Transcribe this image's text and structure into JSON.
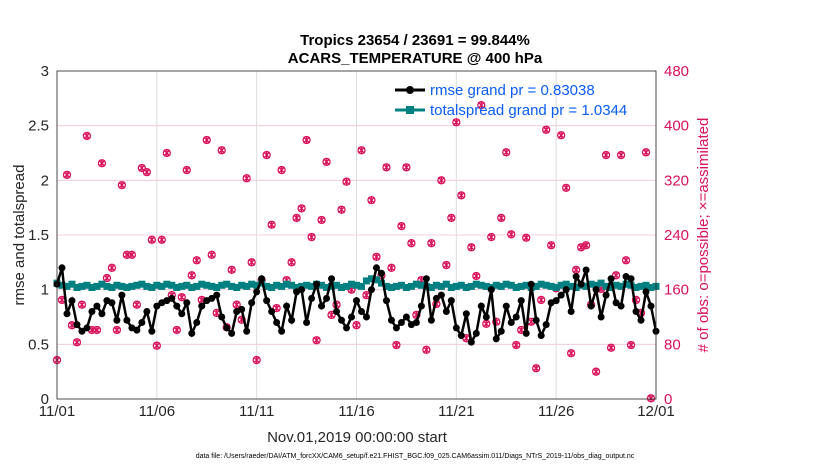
{
  "chart_data": {
    "type": "line",
    "title": [
      "Tropics 23654 / 23691 = 99.844%",
      "ACARS_TEMPERATURE @ 400 hPa"
    ],
    "xlabel": "Nov.01,2019 00:00:00 start",
    "ylabel": "rmse and totalspread",
    "ylabel_right": "# of obs: o=possible; ×=assimilated",
    "xlim_days": [
      0,
      30
    ],
    "x_ticks": [
      "11/01",
      "11/06",
      "11/11",
      "11/16",
      "11/21",
      "11/26",
      "12/01"
    ],
    "ylim": [
      0,
      3
    ],
    "y_ticks": [
      "0",
      "0.5",
      "1",
      "1.5",
      "2",
      "2.5",
      "3"
    ],
    "ylim_right": [
      0,
      480
    ],
    "y_ticks_right": [
      "0",
      "80",
      "160",
      "240",
      "320",
      "400",
      "480"
    ],
    "grid": true,
    "legend_placement": "top-right",
    "x_step_days": 0.25,
    "series": [
      {
        "name": "rmse grand pr = 0.83038",
        "color": "#000000",
        "axis": "left",
        "values": [
          1.05,
          1.2,
          0.78,
          0.9,
          0.68,
          0.62,
          0.65,
          0.8,
          0.85,
          0.78,
          0.9,
          0.88,
          0.72,
          0.95,
          0.72,
          0.65,
          0.63,
          0.7,
          0.8,
          0.62,
          0.85,
          0.88,
          0.9,
          0.92,
          0.85,
          0.78,
          0.88,
          0.6,
          0.7,
          0.85,
          0.9,
          0.92,
          0.95,
          0.75,
          0.65,
          0.6,
          0.8,
          0.82,
          0.62,
          0.88,
          0.98,
          1.1,
          0.9,
          0.8,
          0.7,
          0.62,
          0.85,
          0.72,
          0.98,
          1.0,
          0.7,
          0.92,
          1.05,
          0.85,
          0.92,
          1.1,
          0.8,
          0.72,
          0.65,
          0.75,
          0.9,
          0.8,
          0.75,
          1.0,
          1.2,
          1.15,
          0.9,
          0.72,
          0.65,
          0.7,
          0.75,
          0.68,
          0.7,
          0.85,
          1.1,
          0.72,
          0.92,
          0.95,
          0.8,
          0.9,
          0.65,
          0.58,
          0.78,
          0.52,
          0.6,
          0.85,
          0.75,
          1.0,
          0.55,
          0.62,
          0.85,
          0.7,
          0.75,
          0.9,
          0.6,
          1.05,
          0.72,
          0.58,
          0.68,
          0.88,
          0.9,
          0.95,
          1.0,
          0.8,
          1.12,
          1.05,
          1.18,
          0.85,
          1.0,
          0.75,
          0.95,
          1.1,
          0.88,
          0.85,
          1.12,
          1.1,
          0.8,
          0.72,
          0.98,
          0.85,
          0.62
        ]
      },
      {
        "name": "totalspread grand pr = 1.0344",
        "color": "#008080",
        "axis": "left",
        "values": [
          1.06,
          1.04,
          1.03,
          1.05,
          1.02,
          1.03,
          1.04,
          1.02,
          1.03,
          1.05,
          1.03,
          1.02,
          1.04,
          1.03,
          1.02,
          1.03,
          1.04,
          1.05,
          1.03,
          1.02,
          1.04,
          1.03,
          1.05,
          1.04,
          1.02,
          1.03,
          1.04,
          1.02,
          1.03,
          1.05,
          1.04,
          1.03,
          1.02,
          1.04,
          1.05,
          1.03,
          1.02,
          1.04,
          1.03,
          1.05,
          1.04,
          1.06,
          1.03,
          1.02,
          1.04,
          1.03,
          1.05,
          1.04,
          1.02,
          1.03,
          1.04,
          1.03,
          1.05,
          1.04,
          1.02,
          1.03,
          1.04,
          1.02,
          1.03,
          1.05,
          1.04,
          1.03,
          1.08,
          1.1,
          1.09,
          1.06,
          1.03,
          1.02,
          1.03,
          1.04,
          1.02,
          1.03,
          1.05,
          1.04,
          1.03,
          1.02,
          1.04,
          1.03,
          1.05,
          1.02,
          1.03,
          1.04,
          1.02,
          1.03,
          1.05,
          1.04,
          1.03,
          1.02,
          1.04,
          1.03,
          1.05,
          1.04,
          1.02,
          1.03,
          1.04,
          1.02,
          1.03,
          1.05,
          1.04,
          1.03,
          1.02,
          1.04,
          1.05,
          1.03,
          1.02,
          1.04,
          1.03,
          1.05,
          1.04,
          1.06,
          1.03,
          1.02,
          1.04,
          1.03,
          1.05,
          1.04,
          1.02,
          1.03,
          1.04,
          1.02,
          1.03
        ]
      },
      {
        "name": "# of obs",
        "color": "#d8125b",
        "axis": "right",
        "marker": "o and ×",
        "values": [
          57,
          145,
          328,
          108,
          83,
          138,
          385,
          101,
          101,
          345,
          177,
          192,
          101,
          313,
          211,
          211,
          138,
          338,
          332,
          233,
          78,
          233,
          360,
          152,
          101,
          149,
          335,
          181,
          203,
          145,
          379,
          211,
          126,
          364,
          105,
          189,
          138,
          116,
          323,
          200,
          57,
          174,
          357,
          255,
          133,
          335,
          174,
          200,
          265,
          279,
          379,
          237,
          86,
          262,
          347,
          123,
          138,
          277,
          318,
          160,
          108,
          364,
          152,
          291,
          208,
          181,
          339,
          192,
          79,
          253,
          339,
          228,
          123,
          174,
          72,
          228,
          139,
          320,
          196,
          265,
          405,
          298,
          89,
          222,
          180,
          430,
          110,
          237,
          113,
          265,
          361,
          241,
          79,
          101,
          236,
          113,
          45,
          145,
          394,
          225,
          162,
          386,
          309,
          67,
          189,
          222,
          225,
          138,
          40,
          161,
          357,
          75,
          181,
          357,
          203,
          79,
          145,
          126,
          361,
          1
        ]
      }
    ]
  },
  "footer": "data file: /Users/raeder/DAI/ATM_forcXX/CAM6_setup/f.e21.FHIST_BGC.f09_025.CAM6assim.011/Diags_NTrS_2019-11/obs_diag_output.nc"
}
